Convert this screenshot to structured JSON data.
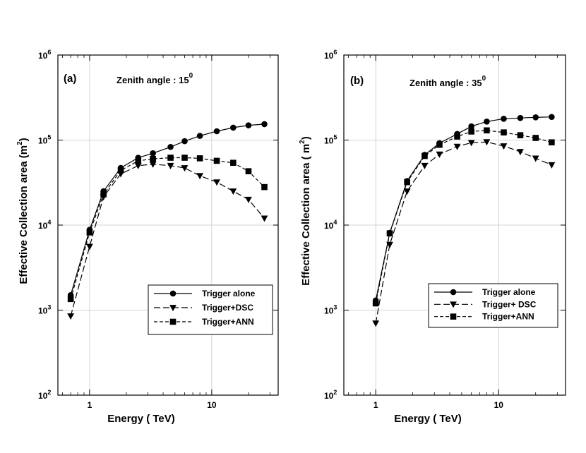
{
  "chart_data": [
    {
      "type": "line",
      "panel_label": "(a)",
      "annotation": "Zenith angle : 15",
      "annotation_sup": "0",
      "xlabel": "Energy  ( TeV)",
      "ylabel": "Effective  Collection  area  (m",
      "ylabel_sup": "2",
      "ylabel_end": ")",
      "xscale": "log",
      "yscale": "log",
      "xlim": [
        0.55,
        35
      ],
      "ylim": [
        100,
        1000000
      ],
      "x_ticks": [
        {
          "value": 1,
          "label": "1"
        },
        {
          "value": 10,
          "label": "10"
        }
      ],
      "y_ticks": [
        {
          "value": 100,
          "base": "10",
          "exp": "2"
        },
        {
          "value": 1000,
          "base": "10",
          "exp": "3"
        },
        {
          "value": 10000,
          "base": "10",
          "exp": "4"
        },
        {
          "value": 100000,
          "base": "10",
          "exp": "5"
        },
        {
          "value": 1000000,
          "base": "10",
          "exp": "6"
        }
      ],
      "grid": true,
      "legend_position": "lower-right",
      "series": [
        {
          "name": "Trigger alone",
          "marker": "circle",
          "dash": "solid",
          "x": [
            0.7,
            1.0,
            1.3,
            1.8,
            2.5,
            3.3,
            4.6,
            6.0,
            8.0,
            11.0,
            15.0,
            20.0,
            27.0
          ],
          "y": [
            1500,
            8800,
            25000,
            47000,
            62000,
            70000,
            83000,
            97000,
            112000,
            127000,
            140000,
            149000,
            154000
          ]
        },
        {
          "name": "Trigger+DSC",
          "marker": "triangle-down",
          "dash": "long",
          "x": [
            0.7,
            1.0,
            1.3,
            1.8,
            2.5,
            3.3,
            4.6,
            6.0,
            8.0,
            11.0,
            15.0,
            20.0,
            27.0
          ],
          "y": [
            850,
            5600,
            21500,
            40000,
            50000,
            52000,
            50000,
            47000,
            38000,
            32000,
            25000,
            20000,
            12000
          ]
        },
        {
          "name": "Trigger+ANN",
          "marker": "square",
          "dash": "short",
          "x": [
            0.7,
            1.0,
            1.3,
            1.8,
            2.5,
            3.3,
            4.6,
            6.0,
            8.0,
            11.0,
            15.0,
            20.0,
            27.0
          ],
          "y": [
            1350,
            8200,
            23000,
            44000,
            57000,
            60000,
            62000,
            62000,
            61000,
            57000,
            54000,
            43000,
            28000
          ]
        }
      ]
    },
    {
      "type": "line",
      "panel_label": "(b)",
      "annotation": "Zenith  angle : 35",
      "annotation_sup": "0",
      "xlabel": "Energy ( TeV)",
      "ylabel": "Effective  Collection  area  ( m",
      "ylabel_sup": "2",
      "ylabel_end": ")",
      "xscale": "log",
      "yscale": "log",
      "xlim": [
        0.55,
        35
      ],
      "ylim": [
        100,
        1000000
      ],
      "x_ticks": [
        {
          "value": 1,
          "label": "1"
        },
        {
          "value": 10,
          "label": "10"
        }
      ],
      "y_ticks": [
        {
          "value": 100,
          "base": "10",
          "exp": "2"
        },
        {
          "value": 1000,
          "base": "10",
          "exp": "3"
        },
        {
          "value": 10000,
          "base": "10",
          "exp": "4"
        },
        {
          "value": 100000,
          "base": "10",
          "exp": "5"
        },
        {
          "value": 1000000,
          "base": "10",
          "exp": "6"
        }
      ],
      "grid": true,
      "legend_position": "lower-right",
      "series": [
        {
          "name": "Trigger  alone",
          "marker": "circle",
          "dash": "solid",
          "x": [
            1.0,
            1.3,
            1.8,
            2.5,
            3.3,
            4.6,
            6.0,
            8.0,
            11.0,
            15.0,
            20.0,
            27.0
          ],
          "y": [
            1300,
            8100,
            33000,
            67000,
            92000,
            118000,
            145000,
            165000,
            178000,
            182000,
            185000,
            187000
          ]
        },
        {
          "name": "Trigger+ DSC",
          "marker": "triangle-down",
          "dash": "long",
          "x": [
            1.0,
            1.3,
            1.8,
            2.5,
            3.3,
            4.6,
            6.0,
            8.0,
            11.0,
            15.0,
            20.0,
            27.0
          ],
          "y": [
            700,
            5900,
            25000,
            50000,
            68000,
            84000,
            93000,
            95000,
            85000,
            73000,
            61000,
            51000
          ]
        },
        {
          "name": "Trigger+ANN",
          "marker": "square",
          "dash": "short",
          "x": [
            1.0,
            1.3,
            1.8,
            2.5,
            3.3,
            4.6,
            6.0,
            8.0,
            11.0,
            15.0,
            20.0,
            27.0
          ],
          "y": [
            1200,
            8000,
            32000,
            65000,
            88000,
            110000,
            126000,
            130000,
            123000,
            114000,
            106000,
            94000
          ]
        }
      ]
    }
  ]
}
